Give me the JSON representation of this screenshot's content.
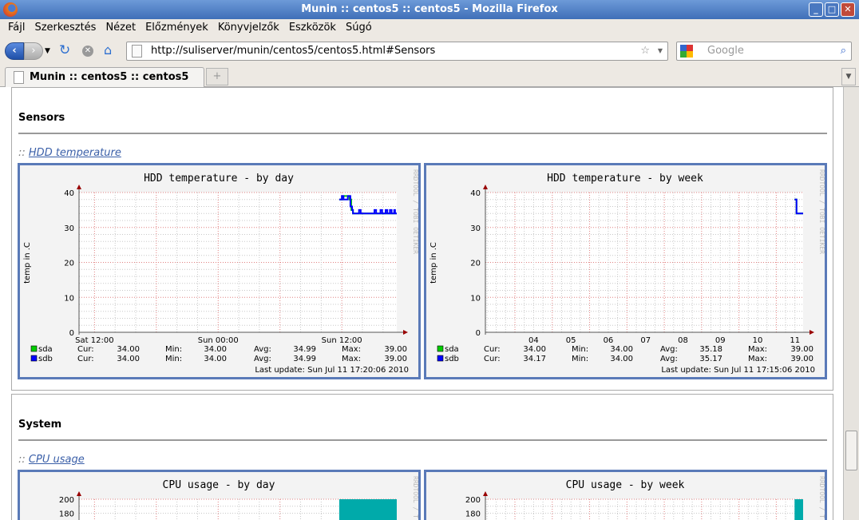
{
  "window": {
    "title": "Munin :: centos5 :: centos5 - Mozilla Firefox",
    "buttons": [
      "_",
      "□",
      "✕"
    ]
  },
  "menu": [
    "Fájl",
    "Szerkesztés",
    "Nézet",
    "Előzmények",
    "Könyvjelzők",
    "Eszközök",
    "Súgó"
  ],
  "nav": {
    "url": "http://suliserver/munin/centos5/centos5.html#Sensors",
    "search_placeholder": "Google"
  },
  "tabs": [
    {
      "label": "Munin :: centos5 :: centos5"
    }
  ],
  "sections": [
    {
      "title": "Sensors",
      "link": "HDD temperature"
    },
    {
      "title": "System",
      "link": "CPU usage"
    }
  ],
  "link_prefix": "::",
  "watermark": "RRDTOOL / TOBI OETIKER",
  "colors": {
    "sda": "#00cc00",
    "sdb": "#0000ff",
    "cpu": "#00aaaa",
    "major_grid": "#e08080",
    "minor_grid": "#c8c8c8",
    "frame": "#5a7ab8"
  },
  "chart_data": [
    {
      "type": "line",
      "title": "HDD temperature - by day",
      "ylabel": "temp in .C",
      "ylim": [
        0,
        40
      ],
      "yticks": [
        0,
        10,
        20,
        30,
        40
      ],
      "xticks": [
        "Sat 12:00",
        "Sun 00:00",
        "Sun 12:00"
      ],
      "xrange": [
        "Sat 10:30",
        "Sun 17:20"
      ],
      "series": [
        {
          "name": "sda",
          "color": "#00cc00",
          "points": [
            [
              "Sun 11:45",
              38
            ],
            [
              "Sun 12:05",
              39
            ],
            [
              "Sun 12:25",
              39
            ],
            [
              "Sun 12:45",
              38
            ],
            [
              "Sun 12:55",
              35
            ],
            [
              "Sun 13:05",
              34
            ],
            [
              "Sun 17:20",
              34
            ]
          ],
          "legend": {
            "Cur": "34.00",
            "Min": "34.00",
            "Avg": "34.99",
            "Max": "39.00"
          }
        },
        {
          "name": "sdb",
          "color": "#0000ff",
          "points": [
            [
              "Sun 11:45",
              38
            ],
            [
              "Sun 12:00",
              39
            ],
            [
              "Sun 12:10",
              38
            ],
            [
              "Sun 12:35",
              39
            ],
            [
              "Sun 12:45",
              39
            ],
            [
              "Sun 12:50",
              36
            ],
            [
              "Sun 13:00",
              35
            ],
            [
              "Sun 13:05",
              34
            ],
            [
              "Sun 13:40",
              35
            ],
            [
              "Sun 13:50",
              34
            ],
            [
              "Sun 15:10",
              35
            ],
            [
              "Sun 15:20",
              34
            ],
            [
              "Sun 15:45",
              35
            ],
            [
              "Sun 15:55",
              34
            ],
            [
              "Sun 16:15",
              35
            ],
            [
              "Sun 16:25",
              34
            ],
            [
              "Sun 16:40",
              35
            ],
            [
              "Sun 16:50",
              34
            ],
            [
              "Sun 17:05",
              35
            ],
            [
              "Sun 17:10",
              34
            ],
            [
              "Sun 17:20",
              34
            ]
          ],
          "legend": {
            "Cur": "34.00",
            "Min": "34.00",
            "Avg": "34.99",
            "Max": "39.00"
          }
        }
      ],
      "last_update": "Last update: Sun Jul 11 17:20:06 2010"
    },
    {
      "type": "line",
      "title": "HDD temperature - by week",
      "ylabel": "temp in .C",
      "ylim": [
        0,
        40
      ],
      "yticks": [
        0,
        10,
        20,
        30,
        40
      ],
      "xticks": [
        "04",
        "05",
        "06",
        "07",
        "08",
        "09",
        "10",
        "11"
      ],
      "xrange": [
        "Jul 03 05:00",
        "Jul 11 17:15"
      ],
      "series": [
        {
          "name": "sda",
          "color": "#00cc00",
          "points": [
            [
              "Jul 11 11:45",
              38
            ],
            [
              "Jul 11 12:30",
              38
            ],
            [
              "Jul 11 13:00",
              34
            ],
            [
              "Jul 11 17:15",
              34
            ]
          ],
          "legend": {
            "Cur": "34.00",
            "Min": "34.00",
            "Avg": "35.18",
            "Max": "39.00"
          }
        },
        {
          "name": "sdb",
          "color": "#0000ff",
          "points": [
            [
              "Jul 11 11:45",
              38
            ],
            [
              "Jul 11 12:30",
              38
            ],
            [
              "Jul 11 13:00",
              34
            ],
            [
              "Jul 11 17:15",
              34
            ]
          ],
          "legend": {
            "Cur": "34.17",
            "Min": "34.00",
            "Avg": "35.17",
            "Max": "39.00"
          }
        }
      ],
      "last_update": "Last update: Sun Jul 11 17:15:06 2010"
    },
    {
      "type": "area",
      "title": "CPU usage - by day",
      "ylim": [
        0,
        200
      ],
      "yticks": [
        180,
        200
      ],
      "xrange": [
        "Sat 10:30",
        "Sun 17:20"
      ],
      "series": [
        {
          "color": "#00aaaa",
          "points": [
            [
              "Sun 11:45",
              200
            ],
            [
              "Sun 17:20",
              200
            ]
          ]
        }
      ]
    },
    {
      "type": "area",
      "title": "CPU usage - by week",
      "ylim": [
        0,
        200
      ],
      "yticks": [
        180,
        200
      ],
      "xrange": [
        "Jul 03 05:00",
        "Jul 11 17:15"
      ],
      "series": [
        {
          "color": "#00aaaa",
          "points": [
            [
              "Jul 11 11:45",
              200
            ],
            [
              "Jul 11 17:15",
              200
            ]
          ]
        }
      ]
    }
  ]
}
